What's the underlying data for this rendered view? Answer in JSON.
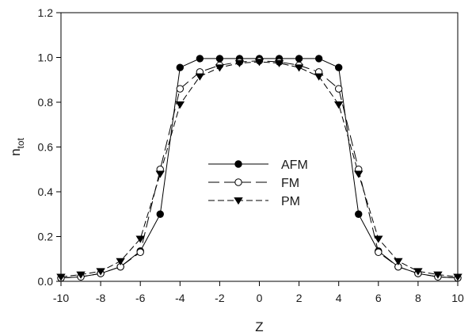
{
  "chart_data": {
    "type": "line",
    "title": "",
    "xlabel": "Z",
    "ylabel": {
      "base": "n",
      "sub": "tot"
    },
    "xlim": [
      -10,
      10
    ],
    "ylim": [
      0,
      1.2
    ],
    "x_ticks": [
      -10,
      -8,
      -6,
      -4,
      -2,
      0,
      2,
      4,
      6,
      8,
      10
    ],
    "y_ticks": [
      0.0,
      0.2,
      0.4,
      0.6,
      0.8,
      1.0,
      1.2
    ],
    "y_tick_labels": [
      "0.0",
      "0.2",
      "0.4",
      "0.6",
      "0.8",
      "1.0",
      "1.2"
    ],
    "grid": false,
    "legend_position": "center",
    "x": [
      -10,
      -9,
      -8,
      -7,
      -6,
      -5,
      -4,
      -3,
      -2,
      -1,
      0,
      1,
      2,
      3,
      4,
      5,
      6,
      7,
      8,
      9,
      10
    ],
    "series": [
      {
        "name": "AFM",
        "marker": "filled-circle",
        "line_style": "solid",
        "color": "#000000",
        "values": [
          0.015,
          0.02,
          0.035,
          0.065,
          0.135,
          0.3,
          0.955,
          0.995,
          0.995,
          0.995,
          0.995,
          0.995,
          0.995,
          0.995,
          0.955,
          0.3,
          0.135,
          0.065,
          0.035,
          0.02,
          0.015
        ]
      },
      {
        "name": "FM",
        "marker": "open-circle",
        "line_style": "long-dash",
        "color": "#000000",
        "values": [
          0.015,
          0.02,
          0.035,
          0.065,
          0.13,
          0.5,
          0.86,
          0.935,
          0.965,
          0.98,
          0.985,
          0.98,
          0.965,
          0.935,
          0.86,
          0.5,
          0.13,
          0.065,
          0.035,
          0.02,
          0.015
        ]
      },
      {
        "name": "PM",
        "marker": "filled-triangle-down",
        "line_style": "dash",
        "color": "#000000",
        "values": [
          0.02,
          0.03,
          0.045,
          0.09,
          0.19,
          0.48,
          0.79,
          0.915,
          0.955,
          0.975,
          0.98,
          0.975,
          0.955,
          0.915,
          0.79,
          0.48,
          0.19,
          0.09,
          0.045,
          0.03,
          0.02
        ]
      }
    ]
  }
}
